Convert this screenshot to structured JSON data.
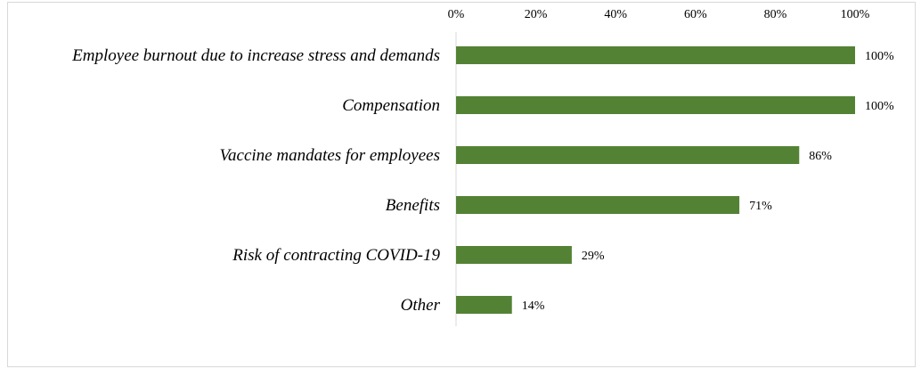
{
  "chart_data": {
    "type": "bar",
    "orientation": "horizontal",
    "categories": [
      "Employee burnout due to increase stress and demands",
      "Compensation",
      "Vaccine mandates for employees",
      "Benefits",
      "Risk of contracting COVID-19",
      "Other"
    ],
    "values": [
      100,
      100,
      86,
      71,
      29,
      14
    ],
    "value_labels": [
      "100%",
      "100%",
      "86%",
      "71%",
      "29%",
      "14%"
    ],
    "xlim": [
      0,
      100
    ],
    "x_ticks": [
      0,
      20,
      40,
      60,
      80,
      100
    ],
    "x_tick_labels": [
      "0%",
      "20%",
      "40%",
      "60%",
      "80%",
      "100%"
    ],
    "x_axis_position": "top",
    "title": "",
    "xlabel": "",
    "ylabel": "",
    "grid": false,
    "legend": "none",
    "bar_color": "#548235",
    "axis_color": "#d9d9d9"
  }
}
